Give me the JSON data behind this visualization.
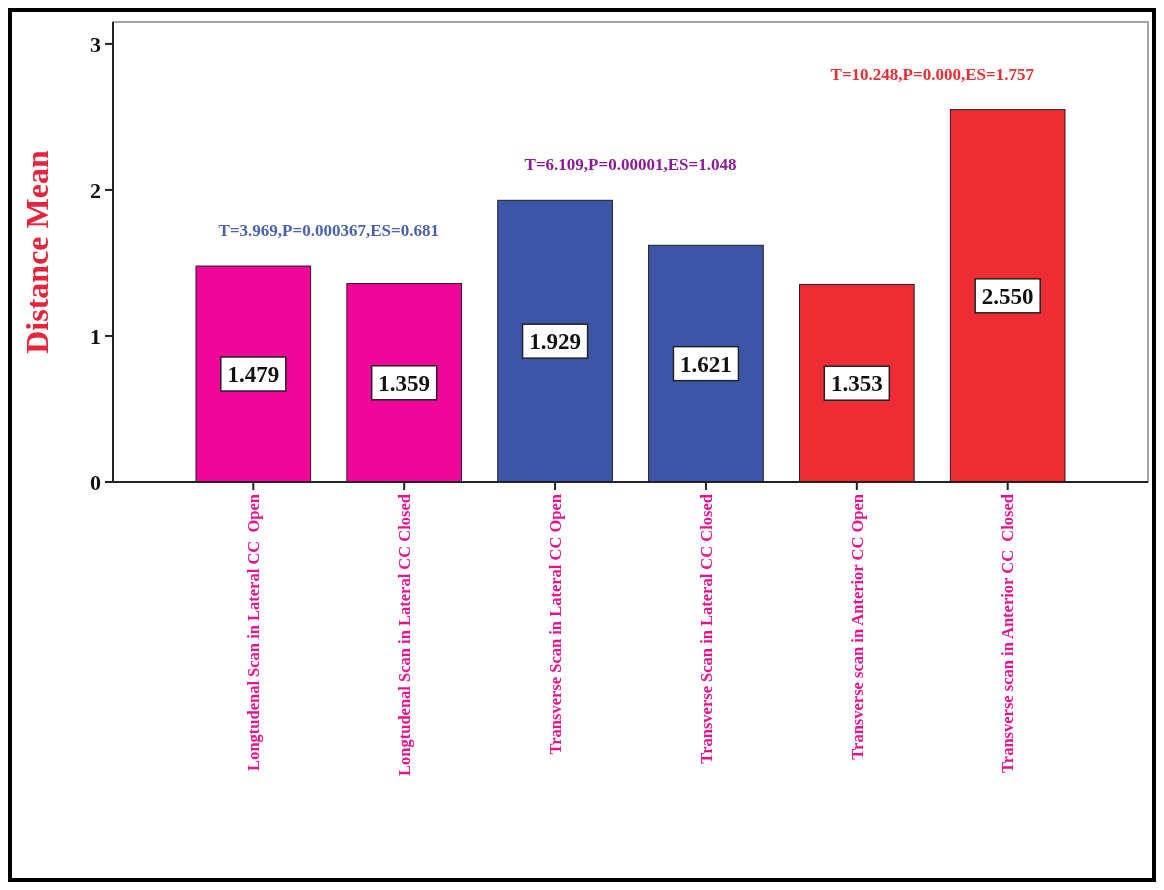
{
  "chart_data": {
    "type": "bar",
    "ylabel": "Distance Mean",
    "categories": [
      "Longtudenal Scan in Lateral CC  Open",
      "Longtudenal Scan in Lateral CC Closed",
      "Transverse Scan in Lateral CC Open",
      "Transverse Scan in Lateral CC Closed",
      "Transverse scan in Anterior CC Open",
      "Transverse scan in Anterior CC  Closed"
    ],
    "values": [
      1.479,
      1.359,
      1.929,
      1.621,
      1.353,
      2.55
    ],
    "colors": [
      "#f0069a",
      "#f0069a",
      "#3d55a6",
      "#3d55a6",
      "#ee2c34",
      "#ee2c34"
    ],
    "value_labels": [
      "1.479",
      "1.359",
      "1.929",
      "1.621",
      "1.353",
      "2.550"
    ],
    "ylim": [
      0,
      3.15
    ],
    "yticks": [
      0,
      1,
      2,
      3
    ],
    "annotations": [
      "T=3.969,P=0.000367,ES=0.681",
      "T=6.109,P=0.00001,ES=1.048",
      "T=10.248,P=0.000,ES=1.757"
    ],
    "grid": false
  }
}
